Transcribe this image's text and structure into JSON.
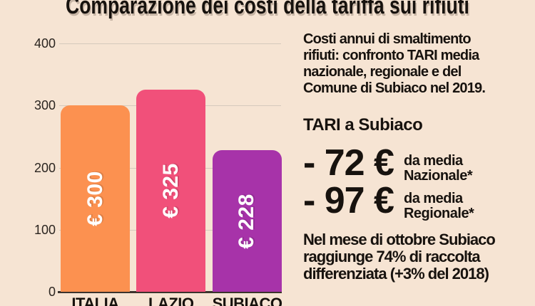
{
  "title": "Comparazione dei costi della tariffa sui rifiuti",
  "colors": {
    "background": "#f6e4d3",
    "text": "#17120e",
    "bar_italia": "#fc9150",
    "bar_lazio": "#f1507a",
    "bar_subiaco": "#a733a9",
    "gridline": "#d5c9bc",
    "axis": "#3b332c",
    "bar_label_text": "#ffffff"
  },
  "chart_data": {
    "type": "bar",
    "title": "Comparazione dei costi della tariffa sui rifiuti",
    "categories": [
      "ITALIA",
      "LAZIO",
      "SUBIACO"
    ],
    "values": [
      300,
      325,
      228
    ],
    "bar_labels": [
      "€ 300",
      "€ 325",
      "€ 228"
    ],
    "bar_colors": [
      "#fc9150",
      "#f1507a",
      "#a733a9"
    ],
    "yticks": [
      0,
      100,
      200,
      300,
      400
    ],
    "ylim": [
      0,
      400
    ],
    "xlabel": "",
    "ylabel": "",
    "grid": true,
    "legend": false
  },
  "right_panel": {
    "intro_lines": [
      "Costi annui di smaltimento",
      "rifiuti: confronto TARI media",
      "nazionale, regionale e del",
      "Comune di Subiaco nel 2019."
    ],
    "subheading": "TARI a Subiaco",
    "deltas": [
      {
        "amount": "- 72 €",
        "note_lines": [
          "da media",
          "Nazionale*"
        ]
      },
      {
        "amount": "- 97 €",
        "note_lines": [
          "da media",
          "Regionale*"
        ]
      }
    ],
    "footer_lines": [
      "Nel mese di ottobre Subiaco",
      "raggiunge 74% di raccolta",
      "differenziata (+3% del 2018)"
    ]
  }
}
